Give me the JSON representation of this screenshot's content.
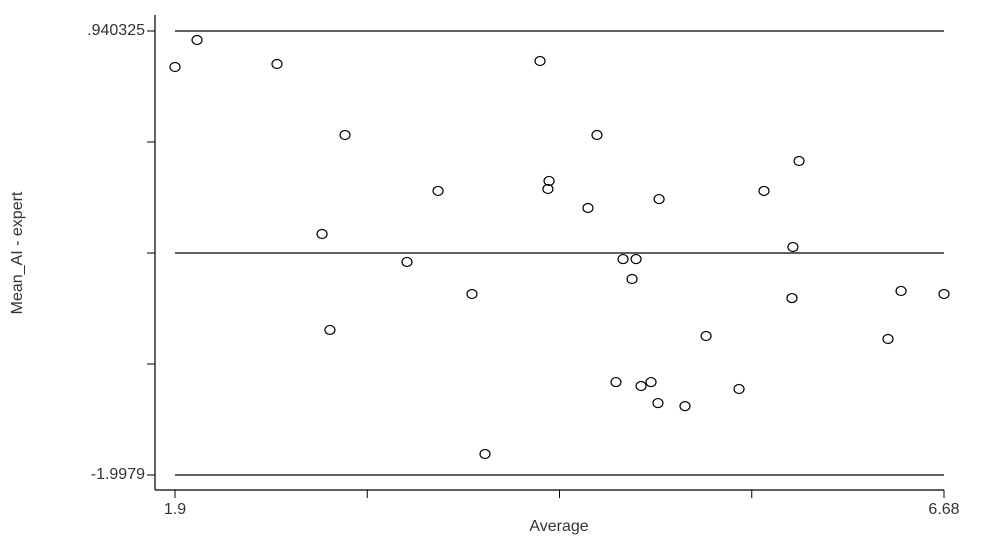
{
  "chart_data": {
    "type": "scatter",
    "x_label": "Average",
    "y_label": "Mean_AI - expert",
    "x": [
      1.9,
      2.037,
      2.534,
      2.957,
      2.814,
      2.863,
      3.342,
      3.535,
      3.746,
      3.827,
      4.169,
      4.225,
      4.218,
      4.467,
      4.523,
      4.641,
      4.685,
      4.766,
      4.741,
      4.797,
      4.859,
      4.909,
      4.902,
      5.07,
      5.201,
      5.406,
      5.561,
      5.741,
      5.735,
      5.779,
      6.332,
      6.413,
      6.68
    ],
    "series": [
      {
        "color": "#000000",
        "values": [
          0.702,
          0.881,
          0.722,
          0.252,
          -0.403,
          -1.038,
          -0.588,
          -0.118,
          -0.8,
          -1.859,
          0.742,
          -0.052,
          -0.105,
          -0.231,
          0.252,
          -1.383,
          -0.569,
          -0.569,
          -0.701,
          -1.409,
          -1.383,
          -0.172,
          -1.522,
          -1.542,
          -1.078,
          -1.429,
          -0.118,
          -0.489,
          -0.827,
          0.08,
          -1.098,
          -0.78,
          -0.8
        ]
      }
    ],
    "xlim": [
      1.9,
      6.68
    ],
    "ylim": [
      -1.9979,
      0.940325
    ],
    "xticks": [
      1.9,
      6.68
    ],
    "xminor_ticks": [
      3.095,
      4.29,
      5.485
    ],
    "yticks": [
      -1.9979,
      {
        "value": 0.940325,
        "label": ".940325"
      }
    ],
    "yminor_ticks": [
      -1.2633,
      -0.5288,
      0.2057
    ],
    "reference_lines": [
      0.940325,
      -0.5287875,
      -1.9979
    ],
    "grid": false
  }
}
